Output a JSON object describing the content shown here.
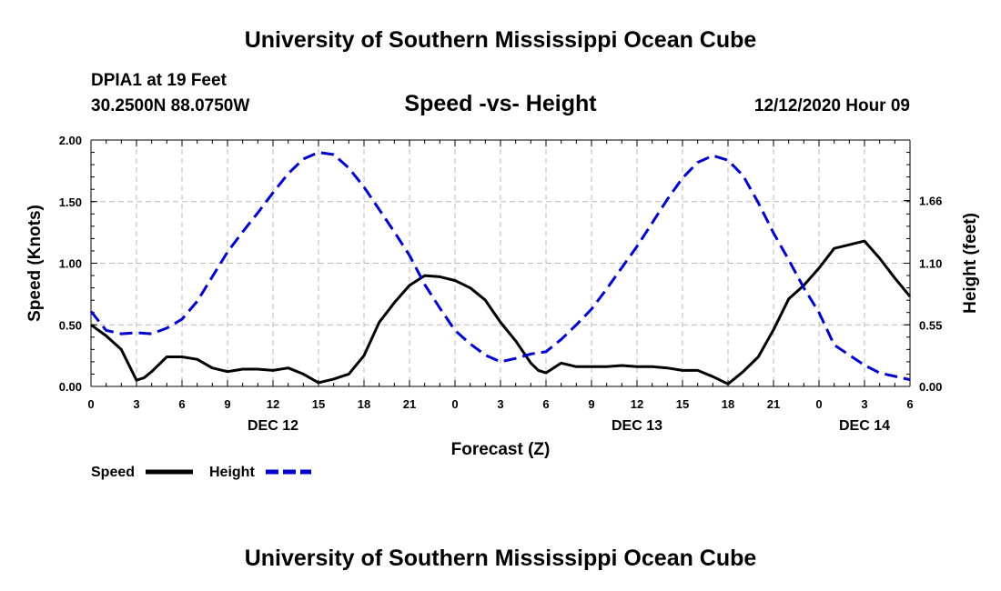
{
  "header": {
    "title": "University of Southern Mississippi Ocean Cube",
    "station": "DPIA1 at 19 Feet",
    "coords": "30.2500N 88.0750W",
    "chart_title": "Speed -vs- Height",
    "date": "12/12/2020 Hour 09"
  },
  "footer": {
    "title": "University of Southern Mississippi Ocean Cube"
  },
  "colors": {
    "speed": "#000000",
    "height": "#0000cc",
    "grid": "#bbbbbb"
  },
  "chart_data": {
    "type": "line",
    "title": "Speed -vs- Height",
    "xlabel": "Forecast (Z)",
    "ylabel": "Speed (Knots)",
    "y2label": "Height (feet)",
    "xlim": [
      0,
      54
    ],
    "ylim": [
      0,
      2.0
    ],
    "y2lim": [
      0,
      2.2
    ],
    "grid": true,
    "x_ticks": [
      0,
      3,
      6,
      9,
      12,
      15,
      18,
      21,
      24,
      27,
      30,
      33,
      36,
      39,
      42,
      45,
      48,
      51,
      54
    ],
    "x_tick_labels": [
      "0",
      "3",
      "6",
      "9",
      "12",
      "15",
      "18",
      "21",
      "0",
      "3",
      "6",
      "9",
      "12",
      "15",
      "18",
      "21",
      "0",
      "3",
      "6"
    ],
    "day_labels": [
      {
        "x": 12,
        "label": "DEC 12"
      },
      {
        "x": 36,
        "label": "DEC 13"
      },
      {
        "x": 51,
        "label": "DEC 14"
      }
    ],
    "y_ticks": [
      0,
      0.5,
      1.0,
      1.5,
      2.0
    ],
    "y_tick_labels": [
      "0.00",
      "0.50",
      "1.00",
      "1.50",
      "2.00"
    ],
    "y2_ticks": [
      0,
      0.55,
      1.1,
      1.66
    ],
    "y2_tick_labels": [
      "0.00",
      "0.55",
      "1.10",
      "1.66"
    ],
    "legend": [
      {
        "label": "Speed",
        "style": "solid"
      },
      {
        "label": "Height",
        "style": "dashed"
      }
    ],
    "series": [
      {
        "name": "Speed",
        "axis": "left",
        "style": "solid",
        "x": [
          0,
          1,
          2,
          3,
          3.5,
          4,
          5,
          6,
          7,
          8,
          9,
          10,
          11,
          12,
          13,
          14,
          15,
          16,
          17,
          18,
          19,
          20,
          21,
          22,
          23,
          24,
          25,
          26,
          27,
          28,
          29,
          29.5,
          30,
          31,
          32,
          33,
          34,
          35,
          36,
          37,
          38,
          39,
          40,
          41,
          42,
          43,
          44,
          45,
          46,
          47,
          48,
          49,
          50,
          51,
          52,
          53,
          54
        ],
        "values": [
          0.5,
          0.41,
          0.3,
          0.05,
          0.07,
          0.12,
          0.24,
          0.24,
          0.22,
          0.15,
          0.12,
          0.14,
          0.14,
          0.13,
          0.15,
          0.1,
          0.03,
          0.06,
          0.1,
          0.25,
          0.52,
          0.68,
          0.82,
          0.9,
          0.89,
          0.86,
          0.8,
          0.7,
          0.52,
          0.37,
          0.19,
          0.13,
          0.11,
          0.19,
          0.16,
          0.16,
          0.16,
          0.17,
          0.16,
          0.16,
          0.15,
          0.13,
          0.13,
          0.08,
          0.02,
          0.12,
          0.24,
          0.46,
          0.71,
          0.82,
          0.96,
          1.12,
          1.15,
          1.18,
          1.04,
          0.88,
          0.73
        ]
      },
      {
        "name": "Height",
        "axis": "right",
        "style": "dashed",
        "x": [
          0,
          1,
          2,
          3,
          4,
          5,
          6,
          7,
          8,
          9,
          10,
          11,
          12,
          13,
          14,
          15,
          16,
          17,
          18,
          19,
          20,
          21,
          22,
          23,
          24,
          25,
          26,
          27,
          28,
          29,
          30,
          31,
          32,
          33,
          34,
          35,
          36,
          37,
          38,
          39,
          40,
          41,
          42,
          43,
          44,
          45,
          46,
          47,
          48,
          49,
          50,
          51,
          52,
          53,
          54
        ],
        "values": [
          0.67,
          0.5,
          0.47,
          0.48,
          0.47,
          0.52,
          0.6,
          0.76,
          0.98,
          1.2,
          1.38,
          1.55,
          1.73,
          1.9,
          2.03,
          2.09,
          2.07,
          1.95,
          1.78,
          1.58,
          1.38,
          1.17,
          0.91,
          0.7,
          0.5,
          0.38,
          0.28,
          0.22,
          0.25,
          0.29,
          0.31,
          0.42,
          0.55,
          0.69,
          0.87,
          1.06,
          1.25,
          1.46,
          1.67,
          1.86,
          2.0,
          2.06,
          2.02,
          1.88,
          1.64,
          1.37,
          1.13,
          0.88,
          0.66,
          0.37,
          0.28,
          0.19,
          0.12,
          0.09,
          0.06
        ]
      }
    ]
  }
}
